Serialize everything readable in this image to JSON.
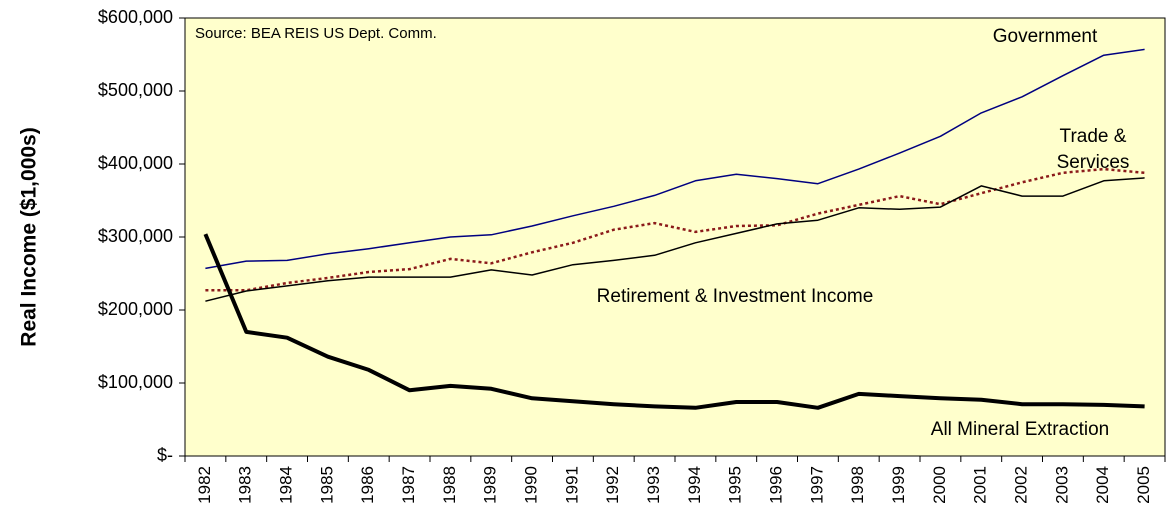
{
  "chart_data": {
    "type": "line",
    "y_label": "Real Income ($1,000s)",
    "annotations": [
      "Source: BEA REIS US Dept. Comm."
    ],
    "categories": [
      "1982",
      "1983",
      "1984",
      "1985",
      "1986",
      "1987",
      "1988",
      "1989",
      "1990",
      "1991",
      "1992",
      "1993",
      "1994",
      "1995",
      "1996",
      "1997",
      "1998",
      "1999",
      "2000",
      "2001",
      "2002",
      "2003",
      "2004",
      "2005"
    ],
    "series": [
      {
        "name": "Government",
        "color": "#000080",
        "width": 1.5,
        "dash": false,
        "values": [
          257000,
          267000,
          268000,
          277000,
          284000,
          292000,
          300000,
          303000,
          315000,
          329000,
          342000,
          357000,
          377000,
          386000,
          380000,
          373000,
          393000,
          415000,
          438000,
          470000,
          492000,
          521000,
          549000,
          557000
        ]
      },
      {
        "name": "Trade & Services",
        "color": "#8b1a1a",
        "width": 2.5,
        "dash": true,
        "values": [
          227000,
          227000,
          237000,
          244000,
          252000,
          256000,
          270000,
          264000,
          279000,
          292000,
          310000,
          319000,
          307000,
          315000,
          316000,
          332000,
          344000,
          356000,
          345000,
          360000,
          375000,
          388000,
          393000,
          388000
        ]
      },
      {
        "name": "Retirement & Investment Income",
        "color": "#000000",
        "width": 1.5,
        "dash": false,
        "values": [
          212000,
          226000,
          233000,
          240000,
          245000,
          245000,
          245000,
          255000,
          248000,
          262000,
          268000,
          275000,
          292000,
          305000,
          318000,
          323000,
          340000,
          338000,
          341000,
          370000,
          356000,
          356000,
          377000,
          381000
        ]
      },
      {
        "name": "All Mineral Extraction",
        "color": "#000000",
        "width": 4,
        "dash": false,
        "values": [
          304000,
          170000,
          162000,
          136000,
          118000,
          90000,
          96000,
          92000,
          79000,
          75000,
          71000,
          68000,
          66000,
          74000,
          74000,
          66000,
          85000,
          82000,
          79000,
          77000,
          71000,
          71000,
          70000,
          68000
        ]
      }
    ],
    "ylim": [
      0,
      600000
    ],
    "yticks": [
      {
        "value": 0,
        "label": "$-"
      },
      {
        "value": 100000,
        "label": "$100,000"
      },
      {
        "value": 200000,
        "label": "$200,000"
      },
      {
        "value": 300000,
        "label": "$300,000"
      },
      {
        "value": 400000,
        "label": "$400,000"
      },
      {
        "value": 500000,
        "label": "$500,000"
      },
      {
        "value": 600000,
        "label": "$600,000"
      }
    ],
    "background": "#ffffcc"
  }
}
